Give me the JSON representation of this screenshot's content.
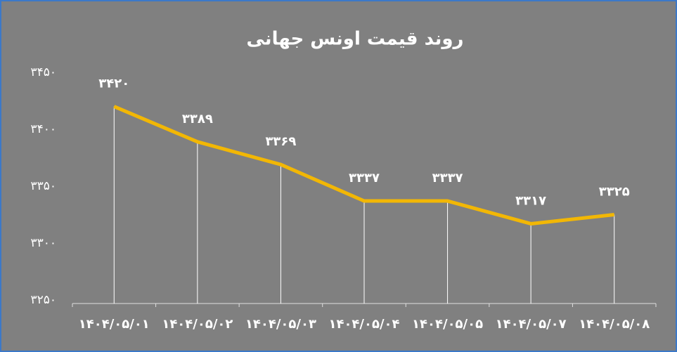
{
  "chart_data": {
    "type": "line",
    "title": "روند قیمت اونس جهانی",
    "categories": [
      "۱۴۰۴/۰۵/۰۱",
      "۱۴۰۴/۰۵/۰۲",
      "۱۴۰۴/۰۵/۰۳",
      "۱۴۰۴/۰۵/۰۴",
      "۱۴۰۴/۰۵/۰۵",
      "۱۴۰۴/۰۵/۰۷",
      "۱۴۰۴/۰۵/۰۸"
    ],
    "values": [
      3420,
      3389,
      3369,
      3337,
      3337,
      3317,
      3325
    ],
    "value_labels": [
      "۳۴۲۰",
      "۳۳۸۹",
      "۳۳۶۹",
      "۳۳۳۷",
      "۳۳۳۷",
      "۳۳۱۷",
      "۳۳۲۵"
    ],
    "color": "#f2b705",
    "drop_lines": true,
    "ylim": [
      3250,
      3450
    ],
    "yticks": [
      {
        "value": 3250,
        "label": "۳۲۵۰"
      },
      {
        "value": 3300,
        "label": "۳۳۰۰"
      },
      {
        "value": 3350,
        "label": "۳۳۵۰"
      },
      {
        "value": 3400,
        "label": "۳۴۰۰"
      },
      {
        "value": 3450,
        "label": "۳۴۵۰"
      }
    ]
  }
}
